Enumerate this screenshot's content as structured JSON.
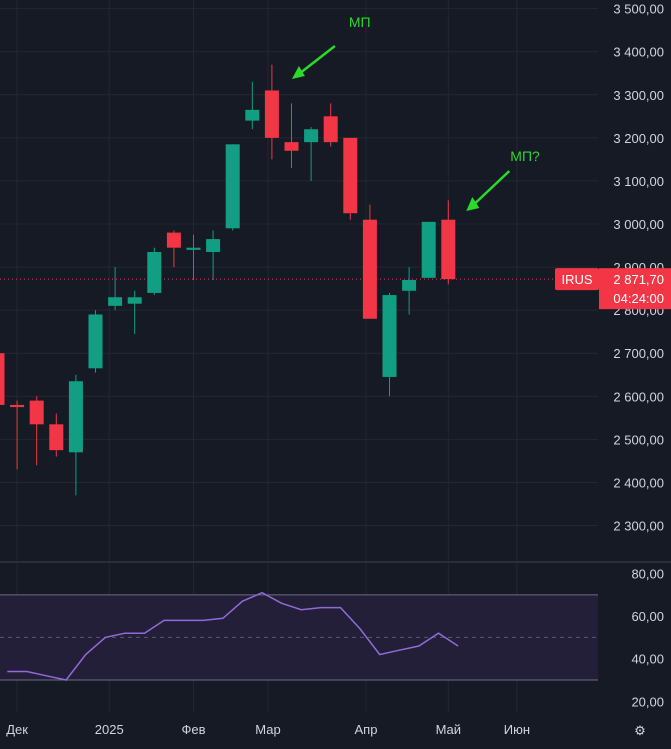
{
  "chart_data": [
    {
      "type": "candlestick",
      "ticker": "IRUS",
      "last_price": "2 871,70",
      "countdown": "04:24:00",
      "ylim": [
        2220,
        3520
      ],
      "y_ticks": [
        "3 500,00",
        "3 400,00",
        "3 300,00",
        "3 200,00",
        "3 100,00",
        "3 000,00",
        "2 900,00",
        "2 800,00",
        "2 700,00",
        "2 600,00",
        "2 500,00",
        "2 400,00",
        "2 300,00"
      ],
      "y_tick_values": [
        3500,
        3400,
        3300,
        3200,
        3100,
        3000,
        2900,
        2800,
        2700,
        2600,
        2500,
        2400,
        2300
      ],
      "x_labels": [
        "Дек",
        "2025",
        "Фев",
        "Мар",
        "Апр",
        "Май",
        "Июн"
      ],
      "x_label_index": [
        1.0,
        5.7,
        10.0,
        13.8,
        18.8,
        23.0,
        26.5
      ],
      "candles": [
        {
          "open": 2700,
          "high": 2710,
          "low": 2470,
          "close": 2580
        },
        {
          "open": 2580,
          "high": 2590,
          "low": 2430,
          "close": 2575
        },
        {
          "open": 2590,
          "high": 2600,
          "low": 2440,
          "close": 2535
        },
        {
          "open": 2535,
          "high": 2560,
          "low": 2460,
          "close": 2475
        },
        {
          "open": 2470,
          "high": 2650,
          "low": 2370,
          "close": 2635
        },
        {
          "open": 2665,
          "high": 2800,
          "low": 2655,
          "close": 2790
        },
        {
          "open": 2810,
          "high": 2900,
          "low": 2800,
          "close": 2830
        },
        {
          "open": 2815,
          "high": 2845,
          "low": 2745,
          "close": 2830
        },
        {
          "open": 2840,
          "high": 2945,
          "low": 2835,
          "close": 2935
        },
        {
          "open": 2980,
          "high": 2985,
          "low": 2900,
          "close": 2945
        },
        {
          "open": 2940,
          "high": 2975,
          "low": 2870,
          "close": 2945
        },
        {
          "open": 2935,
          "high": 2985,
          "low": 2870,
          "close": 2965
        },
        {
          "open": 2990,
          "high": 3185,
          "low": 2985,
          "close": 3185
        },
        {
          "open": 3240,
          "high": 3330,
          "low": 3220,
          "close": 3265
        },
        {
          "open": 3310,
          "high": 3370,
          "low": 3150,
          "close": 3200
        },
        {
          "open": 3190,
          "high": 3280,
          "low": 3130,
          "close": 3170
        },
        {
          "open": 3190,
          "high": 3225,
          "low": 3100,
          "close": 3220
        },
        {
          "open": 3250,
          "high": 3280,
          "low": 3180,
          "close": 3190
        },
        {
          "open": 3200,
          "high": 3200,
          "low": 3010,
          "close": 3025
        },
        {
          "open": 3010,
          "high": 3045,
          "low": 2780,
          "close": 2780
        },
        {
          "open": 2645,
          "high": 2840,
          "low": 2600,
          "close": 2835
        },
        {
          "open": 2845,
          "high": 2900,
          "low": 2790,
          "close": 2870
        },
        {
          "open": 2875,
          "high": 3005,
          "low": 2875,
          "close": 3005
        },
        {
          "open": 3010,
          "high": 3055,
          "low": 2860,
          "close": 2872
        }
      ],
      "annotations": [
        {
          "text": "МП",
          "candle_index": 14
        },
        {
          "text": "МП?",
          "candle_index": 23
        }
      ],
      "colors": {
        "up": "#129e83",
        "down": "#f23645",
        "annotation": "#2bd92b",
        "tag": "#f23645"
      }
    },
    {
      "type": "line",
      "indicator": "RSI",
      "ylim": [
        15,
        84
      ],
      "y_ticks": [
        "80,00",
        "60,00",
        "40,00",
        "20,00"
      ],
      "y_tick_values": [
        80,
        60,
        40,
        20
      ],
      "band": [
        30,
        70
      ],
      "midline": 50,
      "values": [
        null,
        34,
        34,
        32,
        30,
        42,
        50,
        52,
        52,
        58,
        58,
        58,
        59,
        67,
        71,
        66,
        63,
        64,
        64,
        54,
        42,
        44,
        46,
        52,
        46
      ],
      "color": "#8f6bd6"
    }
  ]
}
